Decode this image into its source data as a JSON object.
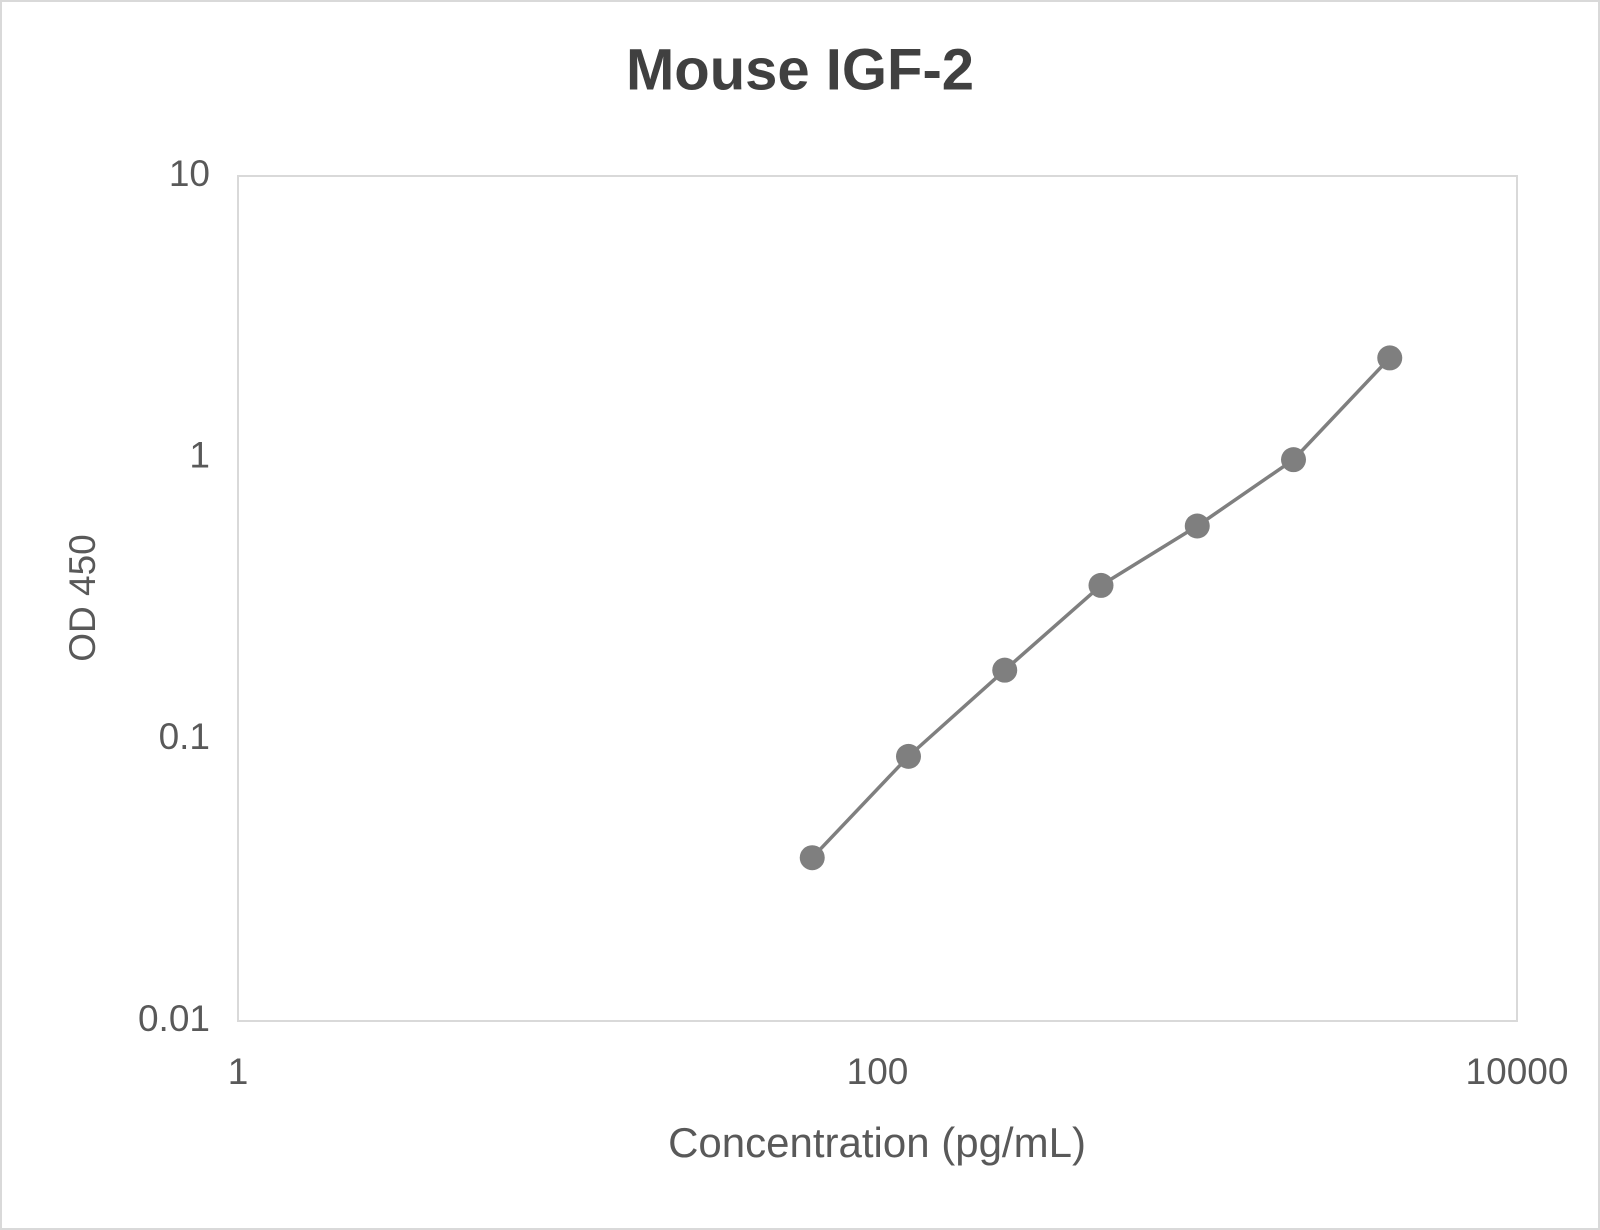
{
  "chart_data": {
    "type": "line",
    "title": "Mouse IGF-2",
    "x_label": "Concentration (pg/mL)",
    "y_label": "OD 450",
    "x": [
      62.5,
      125,
      250,
      500,
      1000,
      2000,
      4000
    ],
    "series": [
      {
        "color": "#7f7f7f",
        "values": [
          0.038,
          0.087,
          0.176,
          0.352,
          0.572,
          0.984,
          2.26
        ]
      }
    ],
    "xlim": [
      1,
      10000
    ],
    "xticks": [
      1,
      100,
      10000
    ],
    "ylim": [
      0.01,
      10
    ],
    "yticks": [
      0.01,
      0.1,
      1,
      10
    ],
    "log_x": true,
    "log_y": true,
    "grid": false,
    "markers": true
  }
}
